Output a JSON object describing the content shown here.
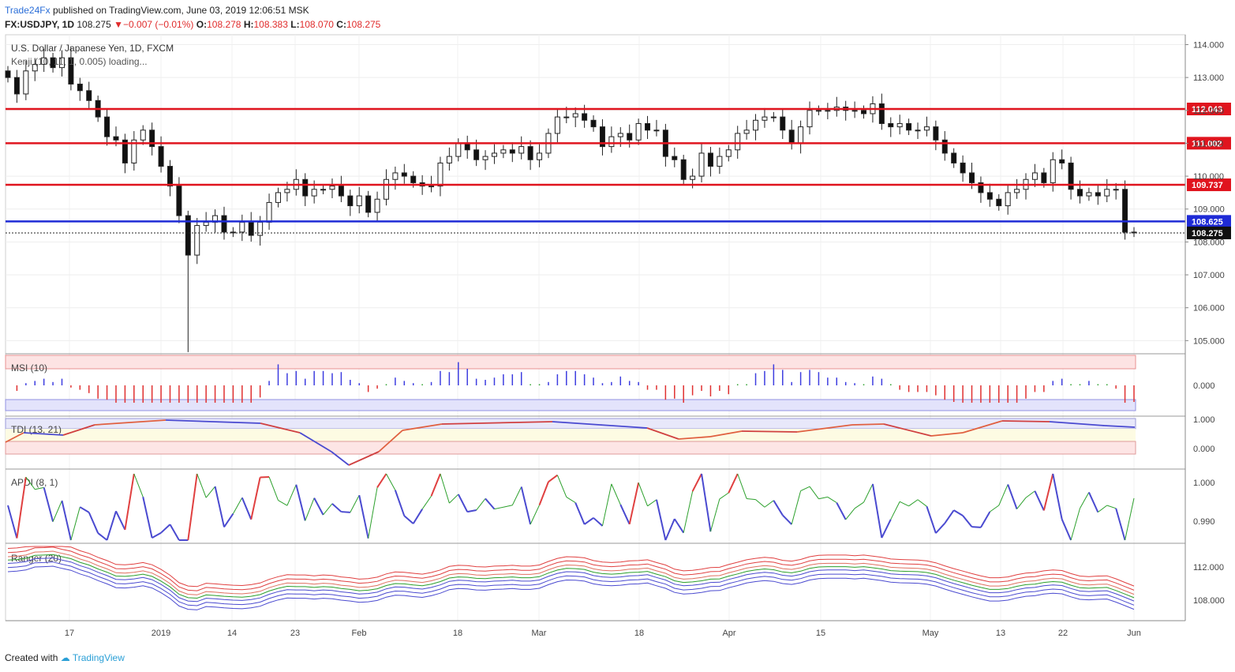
{
  "header": {
    "line1_brand": "Trade24Fx",
    "line1_rest": "published on TradingView.com, June 03, 2019 12:06:51 MSK",
    "symbol": "FX:USDJPY, 1D",
    "last": "108.275",
    "change": "−0.007 (−0.01%)",
    "o_label": "O:",
    "o": "108.278",
    "h_label": "H:",
    "h": "108.383",
    "l_label": "L:",
    "l": "108.070",
    "c_label": "C:",
    "c": "108.275"
  },
  "footer": {
    "created_with": "Created with",
    "brand": "TradingView"
  },
  "colors": {
    "red_level": "#e0141e",
    "blue_level": "#1f2bd6",
    "bull": "#ffffff",
    "bear": "#111111"
  },
  "chart_data": {
    "type": "candlestick",
    "title": "U.S. Dollar / Japanese Yen, 1D, FXCM",
    "indicator_note": "Kenji (10, 11, 1, 0.005) loading...",
    "x_ticks": [
      "17",
      "2019",
      "14",
      "23",
      "Feb",
      "18",
      "Mar",
      "18",
      "Apr",
      "15",
      "May",
      "13",
      "22",
      "Jun"
    ],
    "y_ticks": [
      "114.000",
      "113.000",
      "112.000",
      "111.000",
      "110.000",
      "109.000",
      "108.000",
      "107.000",
      "106.000",
      "105.000"
    ],
    "ylim": [
      104.6,
      114.3
    ],
    "levels": [
      {
        "label": "112.043",
        "value": 112.043,
        "color": "#e0141e"
      },
      {
        "label": "111.002",
        "value": 111.002,
        "color": "#e0141e"
      },
      {
        "label": "109.737",
        "value": 109.737,
        "color": "#e0141e"
      },
      {
        "label": "108.625",
        "value": 108.625,
        "color": "#1f2bd6"
      }
    ],
    "last_price": {
      "label": "108.275",
      "value": 108.275
    },
    "closes": [
      113.0,
      112.5,
      113.2,
      113.4,
      113.6,
      113.3,
      113.6,
      112.8,
      112.6,
      112.3,
      111.8,
      111.2,
      111.1,
      110.4,
      111.1,
      111.4,
      110.9,
      110.3,
      109.7,
      108.8,
      107.6,
      108.5,
      108.6,
      108.8,
      108.3,
      108.3,
      108.6,
      108.2,
      108.6,
      109.2,
      109.5,
      109.6,
      109.9,
      109.4,
      109.6,
      109.6,
      109.7,
      109.4,
      109.1,
      109.4,
      108.9,
      109.3,
      109.9,
      110.1,
      110.0,
      109.8,
      109.7,
      109.7,
      110.4,
      110.6,
      111.0,
      110.8,
      110.5,
      110.6,
      110.7,
      110.8,
      110.7,
      110.9,
      110.5,
      110.7,
      111.3,
      111.8,
      111.8,
      111.9,
      111.7,
      111.5,
      110.9,
      111.2,
      111.3,
      111.1,
      111.6,
      111.4,
      111.4,
      110.6,
      110.5,
      109.9,
      110.0,
      110.7,
      110.3,
      110.6,
      110.8,
      111.3,
      111.4,
      111.7,
      111.8,
      111.8,
      111.4,
      111.0,
      111.5,
      112.0,
      112.0,
      112.0,
      112.1,
      112.0,
      112.0,
      111.9,
      112.2,
      111.6,
      111.5,
      111.6,
      111.4,
      111.4,
      111.5,
      111.1,
      110.7,
      110.4,
      110.1,
      109.8,
      109.5,
      109.3,
      109.1,
      109.5,
      109.6,
      109.9,
      110.1,
      109.8,
      110.5,
      110.4,
      109.6,
      109.4,
      109.5,
      109.4,
      109.6,
      109.6,
      108.3,
      108.3
    ],
    "panels": [
      {
        "label": "MSI (10)",
        "tick": "0.000"
      },
      {
        "label": "TDI (13, 21)",
        "ticks": [
          "1.000",
          "0.000"
        ]
      },
      {
        "label": "APDI (8, 1)",
        "ticks": [
          "1.000",
          "0.990"
        ]
      },
      {
        "label": "Ranger (20)",
        "ticks": [
          "112.000",
          "108.000"
        ]
      }
    ]
  }
}
